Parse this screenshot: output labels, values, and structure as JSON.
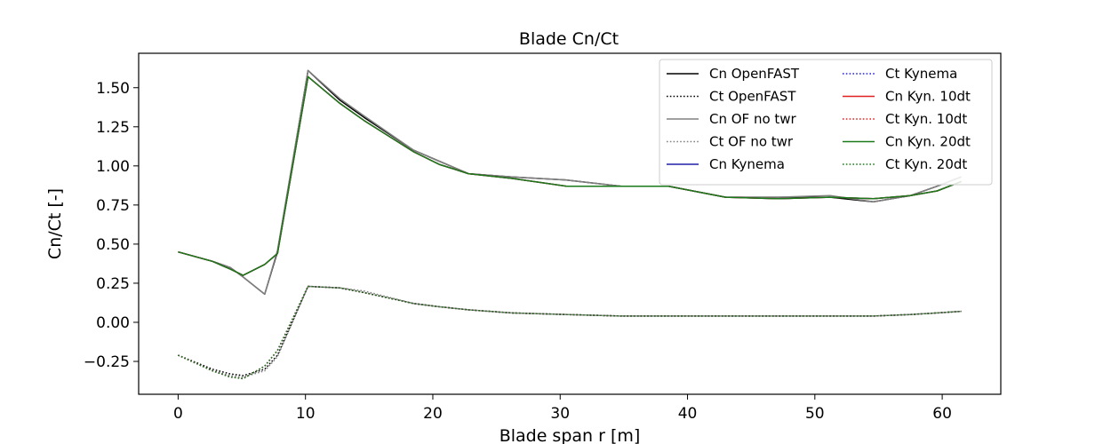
{
  "chart_data": {
    "type": "line",
    "title": "Blade Cn/Ct",
    "xlabel": "Blade span r [m]",
    "ylabel": "Cn/Ct [-]",
    "xlim": [
      -3.1,
      64.6
    ],
    "ylim": [
      -0.46,
      1.72
    ],
    "xticks": [
      0,
      10,
      20,
      30,
      40,
      50,
      60
    ],
    "yticks": [
      -0.25,
      0.0,
      0.25,
      0.5,
      0.75,
      1.0,
      1.25,
      1.5
    ],
    "xtick_labels": [
      "0",
      "10",
      "20",
      "30",
      "40",
      "50",
      "60"
    ],
    "ytick_labels": [
      "−0.25",
      "0.00",
      "0.25",
      "0.50",
      "0.75",
      "1.00",
      "1.25",
      "1.50"
    ],
    "grid": false,
    "legend": {
      "placement": "top-right",
      "columns": 2
    },
    "x": [
      0,
      2.7,
      4.1,
      5.1,
      6.8,
      7.8,
      10.2,
      12.7,
      14.6,
      18.5,
      20.5,
      22.8,
      26.2,
      30.5,
      34.8,
      38.5,
      43.0,
      47.1,
      51.2,
      54.6,
      57.5,
      59.6,
      61.5
    ],
    "series": [
      {
        "name": "Cn OpenFAST",
        "color": "#000000",
        "dash": "solid",
        "values": [
          0.45,
          0.39,
          0.35,
          0.29,
          0.18,
          0.45,
          1.61,
          1.42,
          1.31,
          1.1,
          1.03,
          0.95,
          0.93,
          0.91,
          0.87,
          0.87,
          0.8,
          0.8,
          0.8,
          0.77,
          0.81,
          0.87,
          0.93
        ]
      },
      {
        "name": "Ct OpenFAST",
        "color": "#000000",
        "dash": "dotted",
        "values": [
          -0.21,
          -0.3,
          -0.33,
          -0.34,
          -0.3,
          -0.21,
          0.23,
          0.22,
          0.19,
          0.12,
          0.1,
          0.08,
          0.06,
          0.05,
          0.04,
          0.04,
          0.04,
          0.04,
          0.04,
          0.04,
          0.05,
          0.06,
          0.07
        ]
      },
      {
        "name": "Cn OF no twr",
        "color": "#808080",
        "dash": "solid",
        "values": [
          0.45,
          0.39,
          0.35,
          0.29,
          0.18,
          0.46,
          1.61,
          1.43,
          1.32,
          1.1,
          1.03,
          0.95,
          0.93,
          0.91,
          0.87,
          0.87,
          0.8,
          0.8,
          0.81,
          0.77,
          0.81,
          0.87,
          0.93
        ]
      },
      {
        "name": "Ct OF no twr",
        "color": "#808080",
        "dash": "dotted",
        "values": [
          -0.21,
          -0.31,
          -0.34,
          -0.35,
          -0.31,
          -0.22,
          0.23,
          0.22,
          0.2,
          0.12,
          0.1,
          0.08,
          0.06,
          0.05,
          0.04,
          0.04,
          0.04,
          0.04,
          0.04,
          0.04,
          0.05,
          0.06,
          0.07
        ]
      },
      {
        "name": "Cn Kynema",
        "color": "#1f1fa8",
        "dash": "solid",
        "values": [
          0.45,
          0.39,
          0.34,
          0.3,
          0.37,
          0.44,
          1.57,
          1.4,
          1.29,
          1.09,
          1.01,
          0.95,
          0.92,
          0.87,
          0.87,
          0.87,
          0.8,
          0.79,
          0.8,
          0.79,
          0.81,
          0.84,
          0.9
        ]
      },
      {
        "name": "Ct Kynema",
        "color": "#2020e0",
        "dash": "dotted",
        "values": [
          -0.21,
          -0.31,
          -0.35,
          -0.36,
          -0.28,
          -0.18,
          0.23,
          0.22,
          0.19,
          0.12,
          0.1,
          0.08,
          0.06,
          0.05,
          0.04,
          0.04,
          0.04,
          0.04,
          0.04,
          0.04,
          0.05,
          0.06,
          0.07
        ]
      },
      {
        "name": "Cn Kyn. 10dt",
        "color": "#e02020",
        "dash": "solid",
        "values": [
          0.45,
          0.39,
          0.34,
          0.3,
          0.37,
          0.44,
          1.57,
          1.4,
          1.29,
          1.09,
          1.01,
          0.95,
          0.92,
          0.87,
          0.87,
          0.87,
          0.8,
          0.79,
          0.8,
          0.79,
          0.81,
          0.84,
          0.9
        ]
      },
      {
        "name": "Ct Kyn. 10dt",
        "color": "#e02020",
        "dash": "dotted",
        "values": [
          -0.21,
          -0.31,
          -0.35,
          -0.36,
          -0.28,
          -0.18,
          0.23,
          0.22,
          0.19,
          0.12,
          0.1,
          0.08,
          0.06,
          0.05,
          0.04,
          0.04,
          0.04,
          0.04,
          0.04,
          0.04,
          0.05,
          0.06,
          0.07
        ]
      },
      {
        "name": "Cn Kyn. 20dt",
        "color": "#1a7a1a",
        "dash": "solid",
        "values": [
          0.45,
          0.39,
          0.34,
          0.3,
          0.37,
          0.44,
          1.57,
          1.4,
          1.29,
          1.09,
          1.01,
          0.95,
          0.92,
          0.87,
          0.87,
          0.87,
          0.8,
          0.79,
          0.8,
          0.79,
          0.81,
          0.84,
          0.9
        ]
      },
      {
        "name": "Ct Kyn. 20dt",
        "color": "#1a7a1a",
        "dash": "dotted",
        "values": [
          -0.21,
          -0.31,
          -0.35,
          -0.36,
          -0.28,
          -0.18,
          0.23,
          0.22,
          0.19,
          0.12,
          0.1,
          0.08,
          0.06,
          0.05,
          0.04,
          0.04,
          0.04,
          0.04,
          0.04,
          0.04,
          0.05,
          0.06,
          0.07
        ]
      }
    ]
  }
}
